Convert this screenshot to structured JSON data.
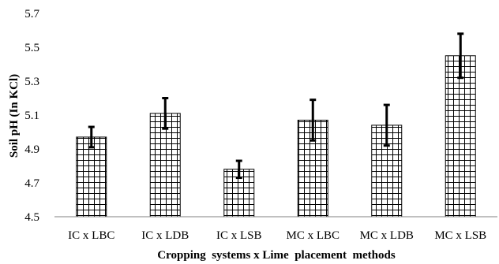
{
  "chart_data": {
    "type": "bar",
    "categories": [
      "IC x LBC",
      "IC x LDB",
      "IC x LSB",
      "MC x LBC",
      "MC x LDB",
      "MC x LSB"
    ],
    "values": [
      4.97,
      5.11,
      4.78,
      5.07,
      5.04,
      5.45
    ],
    "error": [
      0.06,
      0.09,
      0.05,
      0.12,
      0.12,
      0.13
    ],
    "title": "",
    "xlabel": "Cropping  systems x Lime  placement  methods",
    "ylabel": "Soil pH (In KCl)",
    "ylim": [
      4.5,
      5.7
    ],
    "yticks": [
      "4.5",
      "4.7",
      "4.9",
      "5.1",
      "5.3",
      "5.5",
      "5.7"
    ],
    "bar_pattern": "grid-hatch",
    "grid": false,
    "legend": "none"
  }
}
